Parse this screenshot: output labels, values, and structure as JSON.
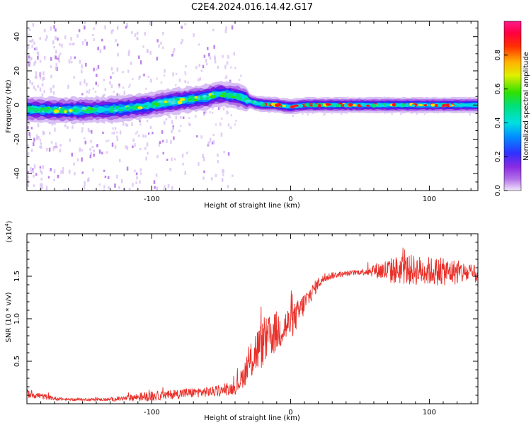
{
  "title": "C2E4.2024.016.14.42.G17",
  "colors": {
    "snr_line": "#e8302a",
    "axis": "#000000",
    "spec_low": "#8a2be2",
    "spec_mid": "#00e07a",
    "spec_high": "#ff0000"
  },
  "chart_data": [
    {
      "type": "heatmap",
      "title": "C2E4.2024.016.14.42.G17",
      "xlabel": "Height of straight line (km)",
      "ylabel": "Frequency (Hz)",
      "xlim": [
        -190,
        135
      ],
      "ylim": [
        -50,
        49
      ],
      "x_ticks": [
        -100,
        0,
        100
      ],
      "x_tick_labels": [
        "-100",
        "0",
        "100"
      ],
      "y_ticks": [
        -40,
        -20,
        0,
        20,
        40
      ],
      "y_tick_labels": [
        "-40",
        "-20",
        "0",
        "20",
        "40"
      ],
      "colorbar": {
        "label": "Normalized spectral amplitude",
        "range": [
          0,
          1
        ],
        "ticks": [
          0.0,
          0.2,
          0.4,
          0.6,
          0.8
        ],
        "tick_labels": [
          "0.0",
          "0.2",
          "0.4",
          "0.6",
          "0.8"
        ],
        "colormap": "rainbow (purple → blue → cyan → green → yellow → red → pink)"
      },
      "ridge": {
        "description": "peak-frequency ridge of the spectrogram",
        "x": [
          -190,
          -170,
          -150,
          -130,
          -120,
          -110,
          -100,
          -90,
          -80,
          -70,
          -60,
          -55,
          -50,
          -45,
          -40,
          -35,
          -30,
          -25,
          -20,
          -15,
          -10,
          -5,
          0,
          10,
          20,
          40,
          60,
          80,
          100,
          120,
          135
        ],
        "y": [
          -2.5,
          -3.0,
          -3.0,
          -2.5,
          -2.0,
          -1.0,
          0.0,
          1.5,
          2.5,
          3.5,
          4.5,
          6.0,
          6.5,
          6.0,
          5.5,
          4.5,
          2.5,
          1.0,
          0.5,
          0.3,
          0.2,
          -0.5,
          -1.0,
          0.0,
          0.0,
          0.0,
          0.0,
          0.0,
          0.0,
          0.0,
          0.0
        ],
        "max_amplitude_region_km": [
          -20,
          135
        ]
      }
    },
    {
      "type": "line",
      "title": "",
      "xlabel": "Height of straight line (km)",
      "ylabel": "SNR (10 * v/v)",
      "y_multiplier_label": "(x10^4)",
      "xlim": [
        -190,
        135
      ],
      "ylim": [
        0,
        2.0
      ],
      "x_ticks": [
        -100,
        0,
        100
      ],
      "x_tick_labels": [
        "-100",
        "0",
        "100"
      ],
      "y_ticks": [
        0.5,
        1.0,
        1.5
      ],
      "y_tick_labels": [
        "0.5",
        "1.0",
        "1.5"
      ],
      "series": [
        {
          "x": [
            -190,
            -180,
            -170,
            -160,
            -150,
            -140,
            -130,
            -120,
            -110,
            -100,
            -90,
            -80,
            -70,
            -60,
            -50,
            -40,
            -35,
            -30,
            -25,
            -20,
            -15,
            -10,
            -5,
            0,
            5,
            10,
            15,
            20,
            25,
            30,
            40,
            50,
            60,
            70,
            80,
            90,
            100,
            110,
            120,
            135
          ],
          "values": [
            0.12,
            0.09,
            0.06,
            0.05,
            0.05,
            0.05,
            0.05,
            0.06,
            0.08,
            0.09,
            0.1,
            0.12,
            0.13,
            0.14,
            0.15,
            0.19,
            0.3,
            0.45,
            0.62,
            0.7,
            0.78,
            0.85,
            0.9,
            0.95,
            1.05,
            1.18,
            1.3,
            1.42,
            1.48,
            1.51,
            1.53,
            1.55,
            1.57,
            1.56,
            1.58,
            1.57,
            1.56,
            1.55,
            1.55,
            1.52
          ],
          "noise_amplitude": [
            0.05,
            0.04,
            0.02,
            0.015,
            0.015,
            0.015,
            0.02,
            0.03,
            0.05,
            0.06,
            0.05,
            0.06,
            0.06,
            0.06,
            0.06,
            0.08,
            0.12,
            0.2,
            0.28,
            0.28,
            0.26,
            0.25,
            0.22,
            0.2,
            0.17,
            0.14,
            0.1,
            0.07,
            0.05,
            0.04,
            0.03,
            0.03,
            0.08,
            0.15,
            0.18,
            0.18,
            0.17,
            0.16,
            0.15,
            0.1
          ]
        }
      ]
    }
  ]
}
